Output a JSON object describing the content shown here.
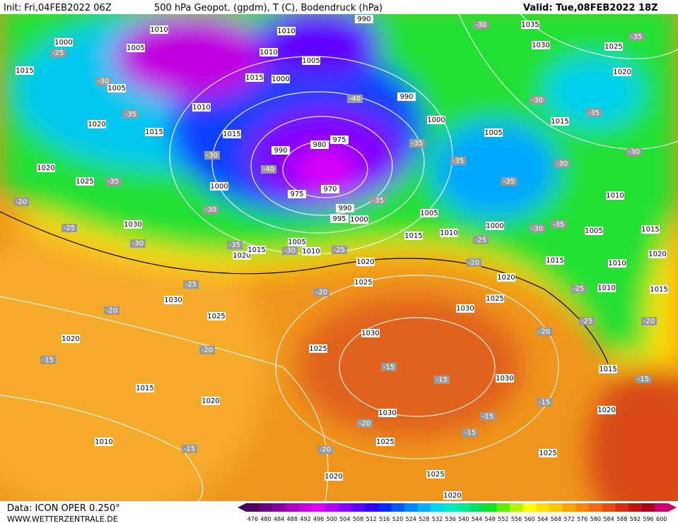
{
  "header": {
    "init": "Init: Fri,04FEB2022 06Z",
    "title": "500 hPa Geopot. (gpdm), T (C), Bodendruck (hPa)",
    "valid": "Valid: Tue,08FEB2022 18Z"
  },
  "footer": {
    "data": "Data: ICON OPER 0.250°",
    "site": "WWW.WETTERZENTRALE.DE"
  },
  "isobar_labels": [
    1010,
    1010,
    990,
    1035,
    1000,
    1005,
    1010,
    1005,
    1030,
    1025,
    1015,
    1015,
    1000,
    1020,
    1005,
    990,
    1010,
    1020,
    1000,
    1015,
    1005,
    1015,
    1015,
    990,
    980,
    975,
    1020,
    1025,
    1000,
    975,
    970,
    990,
    995,
    1000,
    1030,
    1005,
    1015,
    1010,
    1000,
    1010,
    1005,
    1015,
    1020,
    1015,
    1005,
    1010,
    1020,
    1015,
    1010,
    1020,
    1025,
    1020,
    1010,
    1015,
    1030,
    1030,
    1025,
    1025,
    1020,
    1030,
    1025,
    1015,
    1030,
    1015,
    1020,
    1030,
    1020,
    1010,
    1025,
    1025,
    1025,
    1020,
    1020
  ],
  "temperature_labels": [
    -30,
    -25,
    -35,
    -30,
    -35,
    -40,
    -30,
    -35,
    -35,
    -30,
    -30,
    -40,
    -35,
    -35,
    -35,
    -30,
    -20,
    -25,
    -30,
    -35,
    -30,
    -35,
    -30,
    -35,
    -30,
    -25,
    -25,
    -20,
    -25,
    -20,
    -25,
    -20,
    -20,
    -20,
    -25,
    -20,
    -15,
    -15,
    -15,
    -15,
    -15,
    -15,
    -20,
    -15,
    -15,
    -20
  ],
  "colorbar": {
    "ticks": [
      476,
      480,
      484,
      488,
      492,
      496,
      500,
      504,
      508,
      512,
      516,
      520,
      524,
      528,
      532,
      536,
      540,
      544,
      548,
      552,
      556,
      560,
      564,
      568,
      572,
      576,
      580,
      584,
      588,
      592,
      596,
      600
    ],
    "colors": [
      "#4b0060",
      "#6a0082",
      "#8800a0",
      "#a600c0",
      "#c400de",
      "#e000f8",
      "#b400ff",
      "#8800ff",
      "#5c00ff",
      "#3000ff",
      "#0828ff",
      "#0058ff",
      "#0088ff",
      "#00b0ff",
      "#00d4f0",
      "#00e8c8",
      "#00e896",
      "#00e060",
      "#10e428",
      "#60ee00",
      "#b8f400",
      "#ffff00",
      "#ffe000",
      "#ffc200",
      "#ffa400",
      "#ff8800",
      "#f46a10",
      "#e44c10",
      "#d42e10",
      "#c01410",
      "#a80020",
      "#d0006a"
    ]
  }
}
